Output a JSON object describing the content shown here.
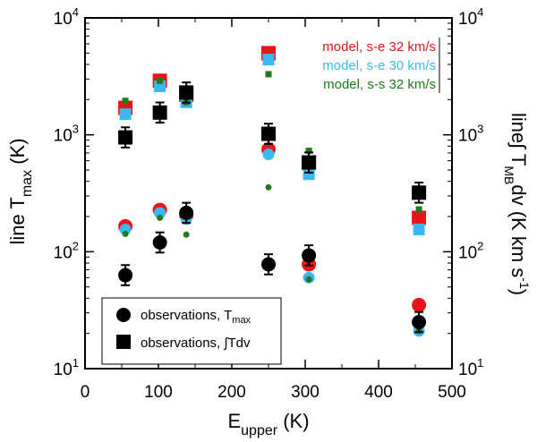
{
  "chart_data": {
    "type": "scatter",
    "title": "",
    "x_scale": "linear",
    "y_scale": "log",
    "xlim": [
      0,
      500
    ],
    "ylim": [
      10,
      10000
    ],
    "x_ticks": [
      0,
      100,
      200,
      300,
      400,
      500
    ],
    "x_tick_labels": [
      "0",
      "100",
      "200",
      "300",
      "400",
      "500"
    ],
    "y_ticks": [
      10,
      100,
      1000,
      10000
    ],
    "y_tick_labels": [
      {
        "base": "10",
        "exp": "1"
      },
      {
        "base": "10",
        "exp": "2"
      },
      {
        "base": "10",
        "exp": "3"
      },
      {
        "base": "10",
        "exp": "4"
      }
    ],
    "xlabel": {
      "main": "E",
      "sub": "upper",
      "unit": " (K)"
    },
    "ylabel_left": {
      "main": "line T",
      "sub": "max",
      "unit": " (K)"
    },
    "ylabel_right": {
      "pre": "line∫ T",
      "sub": "MB",
      "mid": "dv (K km s",
      "sup": "-1",
      "post": ")"
    },
    "legend_top": [
      {
        "label": "model, s-e 32 km/s",
        "color": "#e8141c"
      },
      {
        "label": "model, s-e 30 km/s",
        "color": "#3bb9ee"
      },
      {
        "label": "model, s-s 32 km/s",
        "color": "#1f7a1f"
      }
    ],
    "legend_bottom": [
      {
        "label": "observations, T",
        "sub": "max",
        "marker": "circle"
      },
      {
        "label": "observations, ∫Tdv",
        "sub": "",
        "marker": "square"
      }
    ],
    "series": [
      {
        "name": "observations, Tmax",
        "marker": "circle",
        "color": "#000000",
        "size": "large",
        "errorbars": true,
        "points": [
          [
            55,
            63
          ],
          [
            102,
            120
          ],
          [
            138,
            215
          ],
          [
            250,
            78
          ],
          [
            305,
            93
          ],
          [
            455,
            25
          ]
        ]
      },
      {
        "name": "observations, integrated Tdv",
        "marker": "square",
        "color": "#000000",
        "size": "large",
        "errorbars": true,
        "points": [
          [
            55,
            950
          ],
          [
            102,
            1550
          ],
          [
            138,
            2300
          ],
          [
            250,
            1020
          ],
          [
            305,
            580
          ],
          [
            455,
            320
          ]
        ]
      },
      {
        "name": "model, s-e 32 km/s (line)",
        "marker": "circle",
        "color": "#e8141c",
        "size": "large",
        "points": [
          [
            55,
            165
          ],
          [
            102,
            228
          ],
          [
            138,
            205
          ],
          [
            250,
            750
          ],
          [
            305,
            78
          ],
          [
            455,
            35
          ]
        ]
      },
      {
        "name": "model, s-e 30 km/s (line)",
        "marker": "circle",
        "color": "#3bb9ee",
        "size": "medium",
        "points": [
          [
            55,
            155
          ],
          [
            102,
            215
          ],
          [
            138,
            190
          ],
          [
            250,
            680
          ],
          [
            305,
            60
          ],
          [
            455,
            21
          ]
        ]
      },
      {
        "name": "model, s-s 32 km/s (line)",
        "marker": "circle",
        "color": "#1f7a1f",
        "size": "small",
        "points": [
          [
            55,
            142
          ],
          [
            102,
            195
          ],
          [
            138,
            140
          ],
          [
            250,
            355
          ],
          [
            305,
            58
          ],
          [
            455,
            21
          ]
        ]
      },
      {
        "name": "model, s-e 32 km/s (integrated)",
        "marker": "square",
        "color": "#e8141c",
        "size": "large",
        "points": [
          [
            55,
            1700
          ],
          [
            102,
            2900
          ],
          [
            138,
            2200
          ],
          [
            250,
            5000
          ],
          [
            305,
            580
          ],
          [
            455,
            195
          ]
        ]
      },
      {
        "name": "model, s-e 30 km/s (integrated)",
        "marker": "square",
        "color": "#3bb9ee",
        "size": "medium",
        "points": [
          [
            55,
            1500
          ],
          [
            102,
            2600
          ],
          [
            138,
            1900
          ],
          [
            250,
            4400
          ],
          [
            305,
            460
          ],
          [
            455,
            155
          ]
        ]
      },
      {
        "name": "model, s-s 32 km/s (integrated)",
        "marker": "square",
        "color": "#1f7a1f",
        "size": "small",
        "points": [
          [
            55,
            1950
          ],
          [
            102,
            2900
          ],
          [
            138,
            1900
          ],
          [
            250,
            3300
          ],
          [
            305,
            730
          ],
          [
            455,
            230
          ]
        ]
      }
    ]
  }
}
